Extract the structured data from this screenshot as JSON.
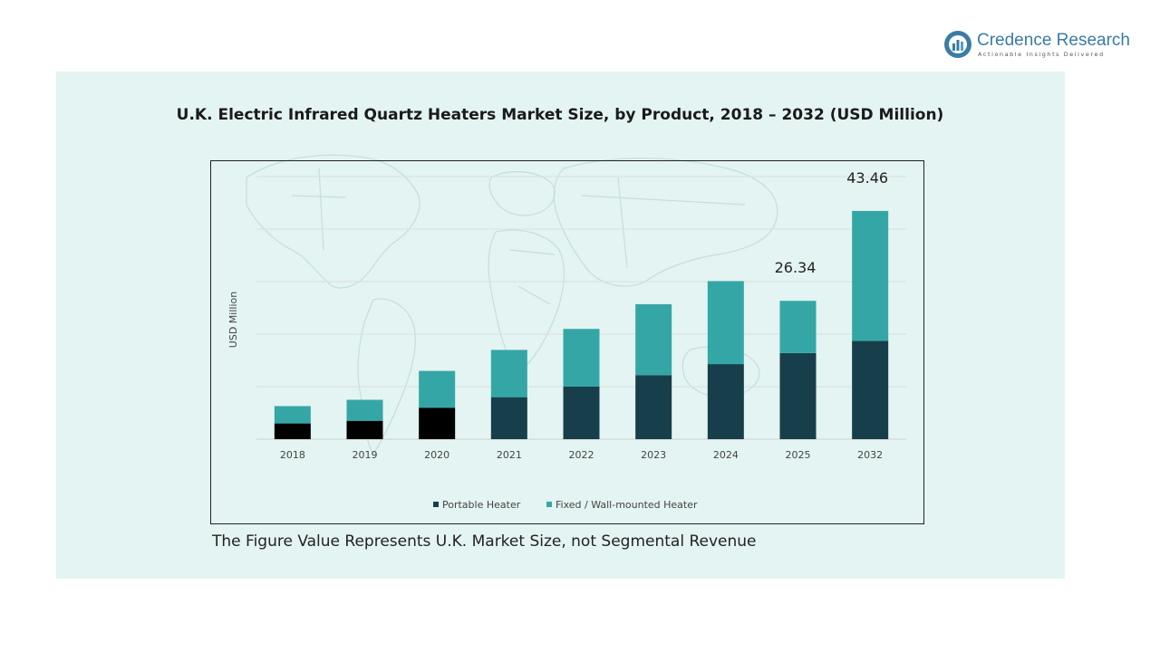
{
  "brand": {
    "name": "Credence Research",
    "tagline": "Actionable Insights Delivered",
    "color": "#3a7ca5"
  },
  "colors": {
    "panel": "#e3f4f2",
    "portable": "#173f4b",
    "portable_early": "#000000",
    "fixed": "#35a6a6"
  },
  "footnote": "The Figure Value Represents U.K. Market Size, not Segmental Revenue",
  "chart_data": {
    "type": "bar",
    "stacked": true,
    "title": "U.K. Electric Infrared Quartz Heaters Market Size, by Product, 2018 – 2032 (USD Million)",
    "ylabel": "USD Million",
    "xlabel": "",
    "grid": true,
    "legend_position": "bottom",
    "ylim": [
      0,
      50
    ],
    "categories": [
      "2018",
      "2019",
      "2020",
      "2021",
      "2022",
      "2023",
      "2024",
      "2025",
      "2032"
    ],
    "series": [
      {
        "name": "Portable Heater",
        "values": [
          3.0,
          3.5,
          6.0,
          8.0,
          10.0,
          12.2,
          14.3,
          16.4,
          18.7
        ]
      },
      {
        "name": "Fixed / Wall-mounted Heater",
        "values": [
          3.3,
          4.0,
          7.0,
          9.0,
          11.0,
          13.5,
          15.8,
          9.94,
          24.76
        ]
      }
    ],
    "totals_labels": [
      {
        "category": "2025",
        "text": "26.34"
      },
      {
        "category": "2032",
        "text": "43.46"
      }
    ]
  }
}
